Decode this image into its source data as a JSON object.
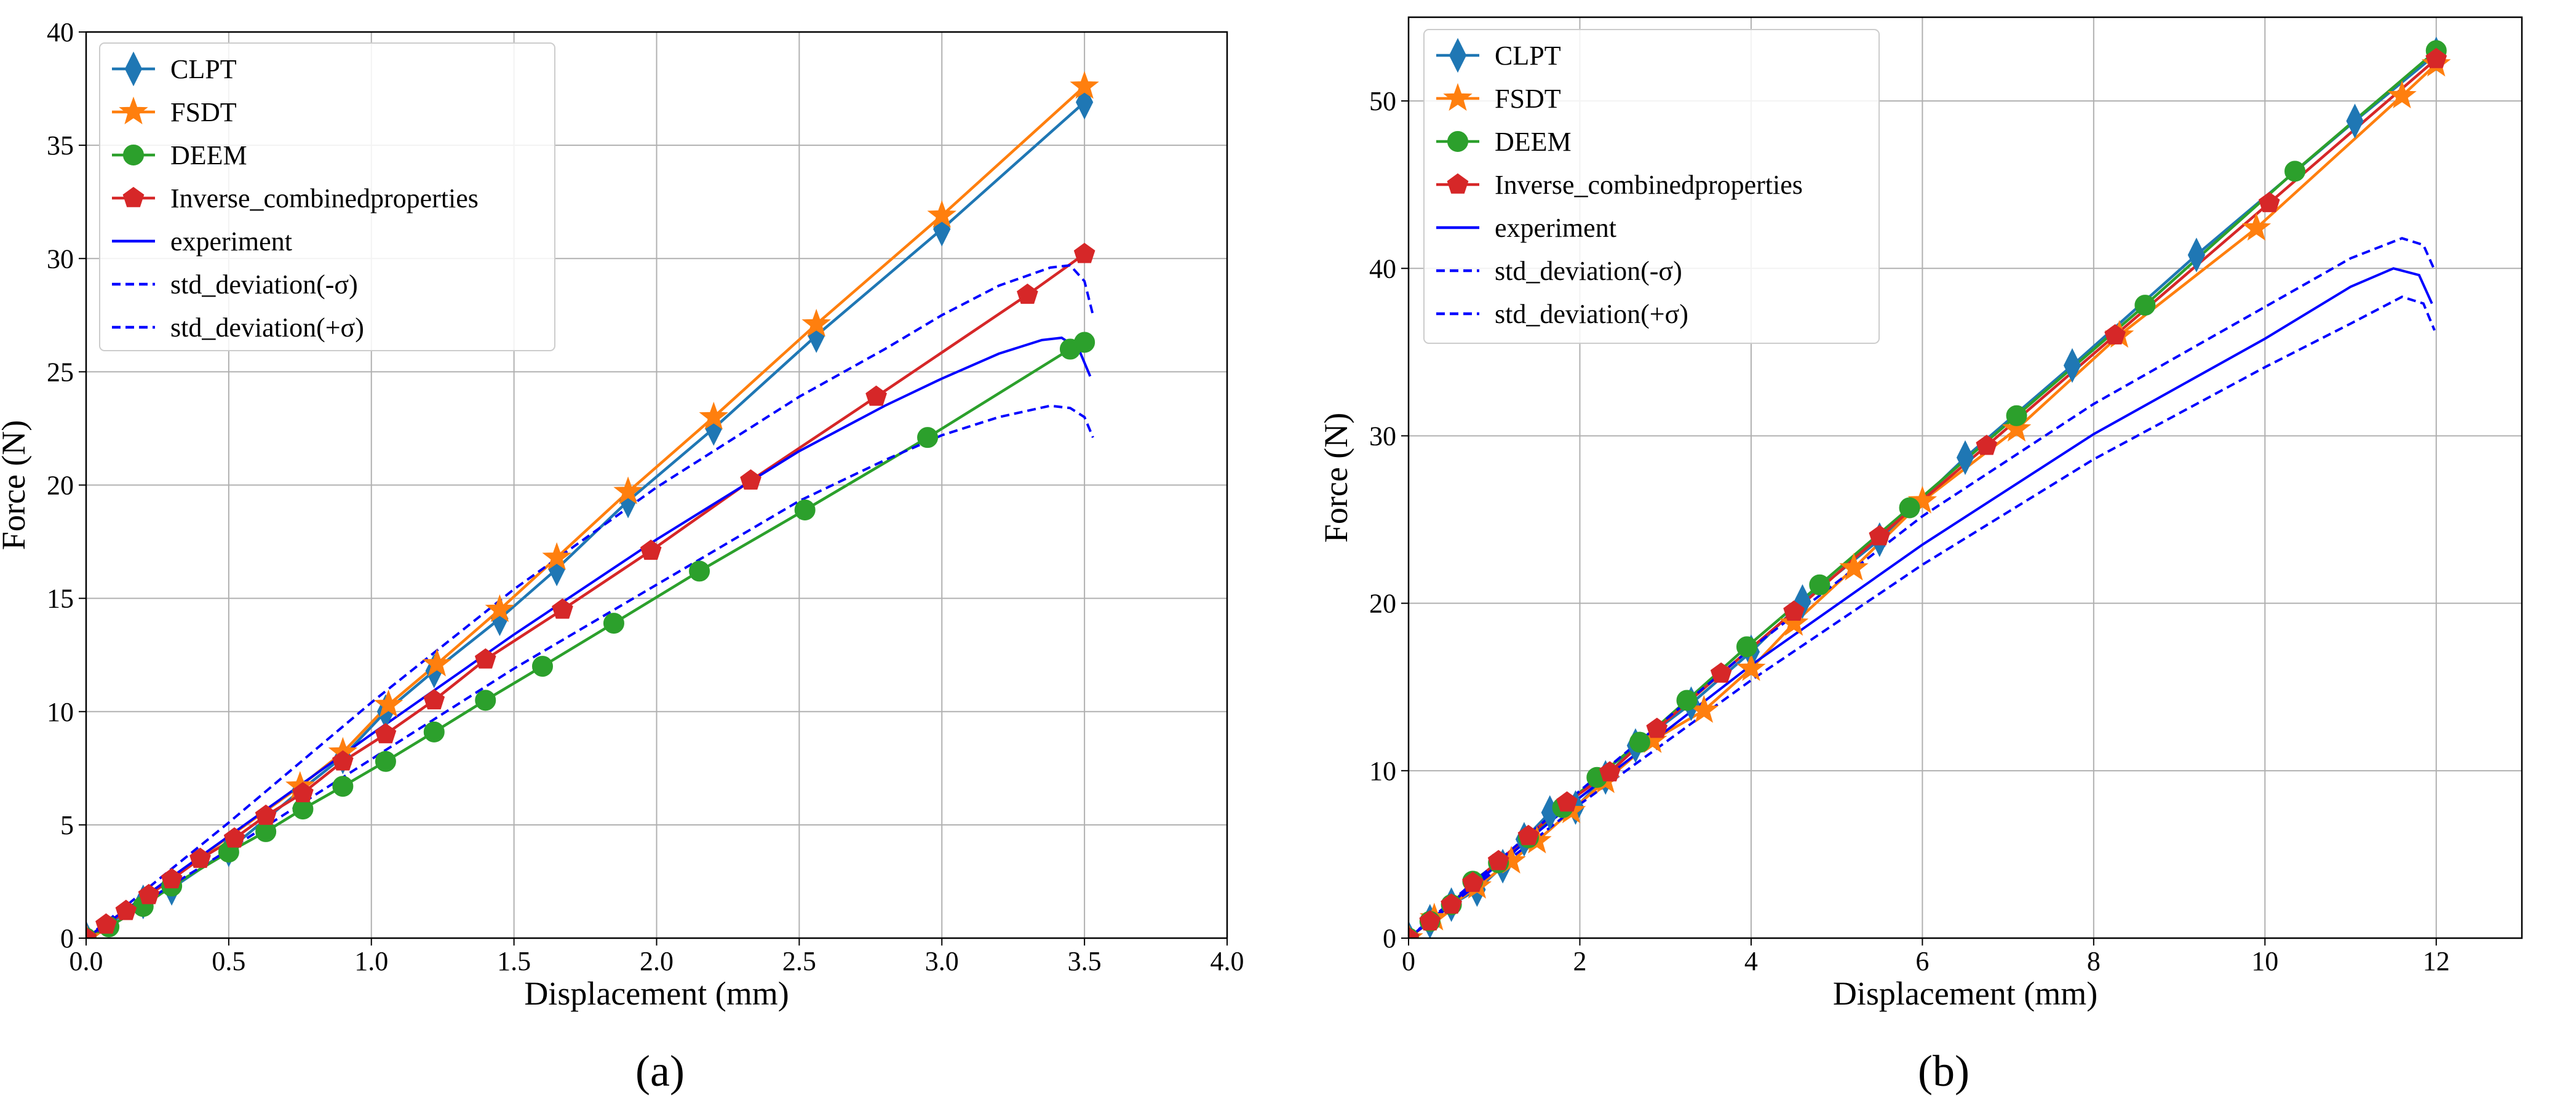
{
  "figure": {
    "panel_a_label": "(a)",
    "panel_b_label": "(b)"
  },
  "chart_data": [
    {
      "type": "line",
      "xlabel": "Displacement (mm)",
      "ylabel": "Force (N)",
      "xlim": [
        0,
        4
      ],
      "ylim": [
        0,
        40
      ],
      "xticks": [
        "0.0",
        "0.5",
        "1.0",
        "1.5",
        "2.0",
        "2.5",
        "3.0",
        "3.5",
        "4.0"
      ],
      "yticks": [
        "0",
        "5",
        "10",
        "15",
        "20",
        "25",
        "30",
        "35",
        "40"
      ],
      "grid": true,
      "legend_position": "top-left",
      "series": [
        {
          "name": "CLPT",
          "color": "#1f77b4",
          "marker": "diamond",
          "style": "solid",
          "x": [
            0,
            0.2,
            0.3,
            0.5,
            0.75,
            0.9,
            1.05,
            1.22,
            1.45,
            1.65,
            1.9,
            2.2,
            2.56,
            3.0,
            3.5
          ],
          "y": [
            0,
            1.6,
            2.2,
            3.9,
            6.5,
            8.0,
            10.0,
            11.8,
            14.1,
            16.3,
            19.3,
            22.5,
            26.6,
            31.3,
            36.9
          ]
        },
        {
          "name": "FSDT",
          "color": "#ff7f0e",
          "marker": "star",
          "style": "solid",
          "x": [
            0,
            0.75,
            0.9,
            1.06,
            1.23,
            1.45,
            1.65,
            1.9,
            2.2,
            2.56,
            3.0,
            3.5
          ],
          "y": [
            0,
            6.7,
            8.2,
            10.3,
            12.1,
            14.5,
            16.8,
            19.7,
            23.0,
            27.1,
            31.9,
            37.6
          ]
        },
        {
          "name": "DEEM",
          "color": "#2ca02c",
          "marker": "circle",
          "style": "solid",
          "x": [
            0,
            0.08,
            0.2,
            0.3,
            0.5,
            0.63,
            0.76,
            0.9,
            1.05,
            1.22,
            1.4,
            1.6,
            1.85,
            2.15,
            2.52,
            2.95,
            3.45,
            3.5
          ],
          "y": [
            0,
            0.5,
            1.4,
            2.3,
            3.8,
            4.7,
            5.7,
            6.7,
            7.8,
            9.1,
            10.5,
            12.0,
            13.9,
            16.2,
            18.9,
            22.1,
            26.0,
            26.3
          ]
        },
        {
          "name": "Inverse_combinedproperties",
          "color": "#d62728",
          "marker": "pentagon",
          "style": "solid",
          "x": [
            0,
            0.07,
            0.14,
            0.22,
            0.3,
            0.4,
            0.52,
            0.63,
            0.76,
            0.9,
            1.05,
            1.22,
            1.4,
            1.67,
            1.98,
            2.33,
            2.77,
            3.3,
            3.5
          ],
          "y": [
            0,
            0.6,
            1.2,
            1.9,
            2.6,
            3.5,
            4.4,
            5.4,
            6.4,
            7.8,
            9.0,
            10.5,
            12.3,
            14.5,
            17.1,
            20.2,
            23.9,
            28.4,
            30.2
          ]
        },
        {
          "name": "experiment",
          "color": "#0000ff",
          "marker": "none",
          "style": "solid",
          "x": [
            0,
            0.5,
            1.0,
            1.5,
            2.0,
            2.5,
            2.8,
            3.0,
            3.2,
            3.35,
            3.42,
            3.48,
            3.52
          ],
          "y": [
            0,
            4.5,
            9.0,
            13.4,
            17.6,
            21.5,
            23.5,
            24.7,
            25.8,
            26.4,
            26.5,
            26.0,
            24.8
          ]
        },
        {
          "name": "std_deviation(-σ)",
          "color": "#0000ff",
          "marker": "none",
          "style": "dashed",
          "x": [
            0,
            0.5,
            1.0,
            1.5,
            2.0,
            2.5,
            2.8,
            3.0,
            3.2,
            3.38,
            3.45,
            3.5,
            3.53
          ],
          "y": [
            0,
            3.9,
            7.9,
            11.9,
            15.6,
            19.3,
            21.1,
            22.2,
            23.0,
            23.5,
            23.4,
            23.0,
            22.1
          ]
        },
        {
          "name": "std_deviation(+σ)",
          "color": "#0000ff",
          "marker": "none",
          "style": "dashed",
          "x": [
            0,
            0.5,
            1.0,
            1.5,
            2.0,
            2.5,
            2.8,
            3.0,
            3.2,
            3.38,
            3.45,
            3.5,
            3.53
          ],
          "y": [
            0,
            5.1,
            10.4,
            15.4,
            19.9,
            23.9,
            26.0,
            27.5,
            28.8,
            29.6,
            29.7,
            29.0,
            27.5
          ]
        }
      ]
    },
    {
      "type": "line",
      "xlabel": "Displacement (mm)",
      "ylabel": "Force (N)",
      "xlim": [
        0,
        13
      ],
      "ylim": [
        0,
        55
      ],
      "xticks": [
        "0",
        "2",
        "4",
        "6",
        "8",
        "10",
        "12"
      ],
      "yticks": [
        "0",
        "10",
        "20",
        "30",
        "40",
        "50"
      ],
      "grid": true,
      "legend_position": "top-left",
      "series": [
        {
          "name": "CLPT",
          "color": "#1f77b4",
          "marker": "diamond",
          "style": "solid",
          "x": [
            0,
            0.25,
            0.5,
            0.8,
            1.1,
            1.35,
            1.65,
            1.95,
            2.3,
            2.65,
            3.3,
            4.0,
            4.6,
            5.5,
            6.5,
            7.75,
            9.2,
            11.05,
            12.0
          ],
          "y": [
            0,
            1.0,
            2.0,
            2.9,
            4.3,
            5.9,
            7.5,
            7.8,
            9.6,
            11.5,
            14.0,
            17.1,
            20.1,
            23.8,
            28.7,
            34.2,
            40.8,
            48.8,
            52.8
          ]
        },
        {
          "name": "FSDT",
          "color": "#ff7f0e",
          "marker": "star",
          "style": "solid",
          "x": [
            0,
            0.3,
            0.8,
            1.2,
            1.5,
            1.9,
            2.3,
            2.85,
            3.45,
            4.0,
            4.5,
            5.2,
            6.0,
            7.1,
            8.3,
            9.9,
            11.6,
            12.0
          ],
          "y": [
            0,
            1.2,
            3.1,
            4.6,
            5.8,
            7.6,
            9.4,
            11.8,
            13.6,
            16.1,
            18.8,
            22.1,
            26.1,
            30.4,
            36.0,
            42.4,
            50.3,
            52.2
          ]
        },
        {
          "name": "DEEM",
          "color": "#2ca02c",
          "marker": "circle",
          "style": "solid",
          "x": [
            0,
            0.25,
            0.5,
            0.75,
            1.05,
            1.4,
            1.8,
            2.2,
            2.7,
            3.25,
            3.95,
            4.8,
            5.85,
            7.1,
            8.6,
            10.35,
            12.0
          ],
          "y": [
            0,
            1.0,
            2.0,
            3.4,
            4.5,
            6.0,
            7.8,
            9.6,
            11.7,
            14.2,
            17.4,
            21.1,
            25.7,
            31.2,
            37.8,
            45.8,
            53.0
          ]
        },
        {
          "name": "Inverse_combinedproperties",
          "color": "#d62728",
          "marker": "pentagon",
          "style": "solid",
          "x": [
            0,
            0.25,
            0.5,
            0.75,
            1.05,
            1.4,
            1.85,
            2.35,
            2.9,
            3.65,
            4.5,
            5.5,
            6.75,
            8.25,
            10.05,
            12.0
          ],
          "y": [
            0,
            1.0,
            2.0,
            3.3,
            4.6,
            6.1,
            8.1,
            9.9,
            12.5,
            15.8,
            19.5,
            24.0,
            29.4,
            36.0,
            43.9,
            52.5
          ]
        },
        {
          "name": "experiment",
          "color": "#0000ff",
          "marker": "none",
          "style": "solid",
          "x": [
            0,
            2,
            4,
            6,
            8,
            10,
            11,
            11.5,
            11.8,
            11.95
          ],
          "y": [
            0,
            8.4,
            16.3,
            23.5,
            30.1,
            35.8,
            38.9,
            40.0,
            39.6,
            37.9
          ]
        },
        {
          "name": "std_deviation(-σ)",
          "color": "#0000ff",
          "marker": "none",
          "style": "dashed",
          "x": [
            0,
            2,
            4,
            6,
            8,
            10,
            11,
            11.6,
            11.85,
            11.98
          ],
          "y": [
            0,
            8.0,
            15.4,
            22.3,
            28.6,
            34.1,
            36.7,
            38.3,
            37.9,
            36.3
          ]
        },
        {
          "name": "std_deviation(+σ)",
          "color": "#0000ff",
          "marker": "none",
          "style": "dashed",
          "x": [
            0,
            2,
            4,
            6,
            8,
            10,
            11,
            11.6,
            11.85,
            11.98
          ],
          "y": [
            0,
            8.8,
            17.3,
            25.2,
            31.9,
            37.7,
            40.6,
            41.8,
            41.4,
            39.9
          ]
        }
      ]
    }
  ]
}
